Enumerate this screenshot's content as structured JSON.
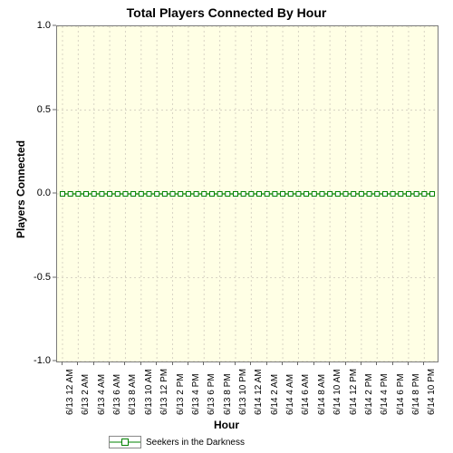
{
  "chart": {
    "type": "line",
    "title": "Total Players Connected By Hour",
    "title_fontsize": 14,
    "background_color": "#ffffff",
    "plot_background_color": "#ffffe5",
    "border_color": "#7a7a7a",
    "grid_color": "#d8d4c4",
    "grid_dash": "2,3",
    "font_family": "Arial",
    "x": {
      "title": "Hour",
      "title_fontsize": 12,
      "tick_fontsize": 10,
      "tick_rotation_deg": -90,
      "labels": [
        "6/13 12 AM",
        "6/13 2 AM",
        "6/13 4 AM",
        "6/13 6 AM",
        "6/13 8 AM",
        "6/13 10 AM",
        "6/13 12 PM",
        "6/13 2 PM",
        "6/13 4 PM",
        "6/13 6 PM",
        "6/13 8 PM",
        "6/13 10 PM",
        "6/14 12 AM",
        "6/14 2 AM",
        "6/14 4 AM",
        "6/14 6 AM",
        "6/14 8 AM",
        "6/14 10 AM",
        "6/14 12 PM",
        "6/14 2 PM",
        "6/14 4 PM",
        "6/14 6 PM",
        "6/14 8 PM",
        "6/14 10 PM"
      ],
      "n_points": 48
    },
    "y": {
      "title": "Players Connected",
      "title_fontsize": 12,
      "tick_fontsize": 11,
      "min": -1.0,
      "max": 1.0,
      "ticks": [
        -1.0,
        -0.5,
        0.0,
        0.5,
        1.0
      ],
      "tick_labels": [
        "-1.0",
        "-0.5",
        "0.0",
        "0.5",
        "1.0"
      ]
    },
    "series": [
      {
        "name": "Seekers in the Darkness",
        "color": "#008000",
        "line_width": 1.2,
        "marker": "square",
        "marker_size": 5,
        "marker_fill": "#ffffff",
        "data_value": 0,
        "data_length": 48
      }
    ],
    "legend": {
      "position": "bottom-left",
      "items": [
        {
          "swatch_color": "#008000",
          "label": "Seekers in the Darkness"
        }
      ]
    }
  }
}
